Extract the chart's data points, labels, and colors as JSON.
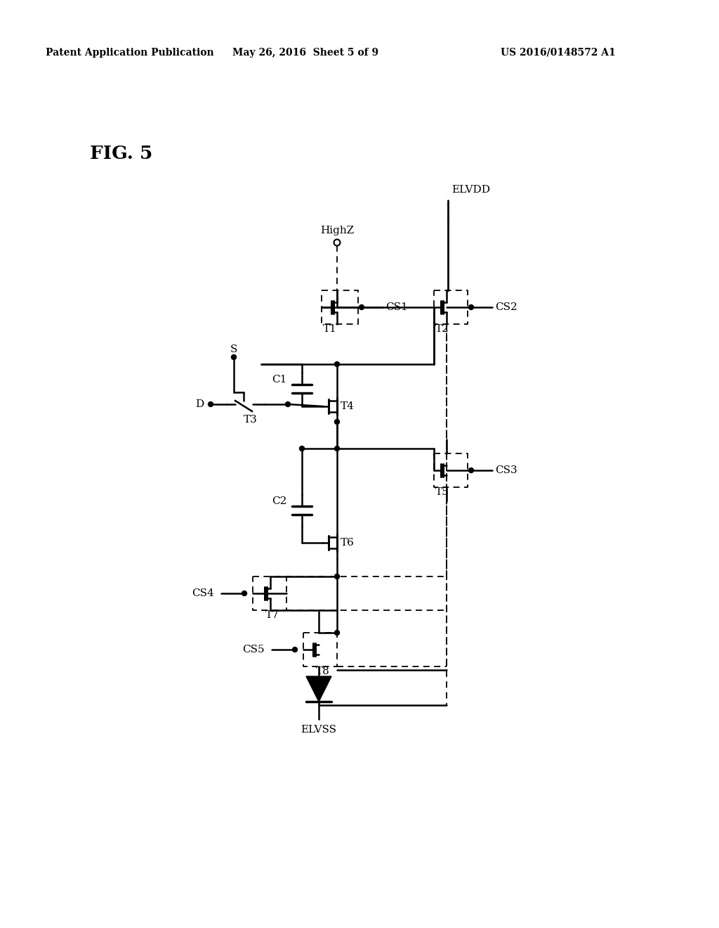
{
  "bg_color": "#ffffff",
  "text_color": "#000000",
  "header_left": "Patent Application Publication",
  "header_center": "May 26, 2016  Sheet 5 of 9",
  "header_right": "US 2016/0148572 A1",
  "fig_label": "FIG. 5"
}
